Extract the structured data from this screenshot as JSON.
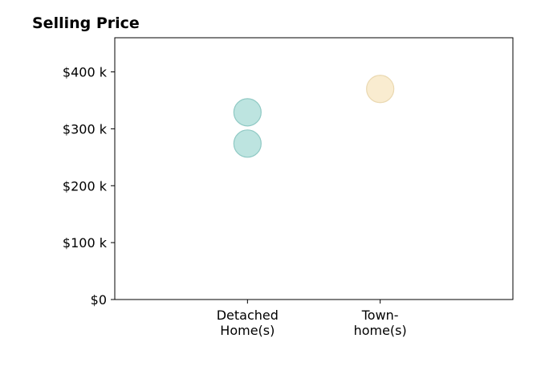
{
  "chart_data": {
    "type": "scatter",
    "title": "Selling Price",
    "xlabel": "",
    "ylabel": "",
    "categories": [
      [
        "Detached",
        "Home(s)"
      ],
      [
        "Town-",
        "home(s)"
      ]
    ],
    "ylim": [
      0,
      460000
    ],
    "xlim": [
      0,
      3
    ],
    "yticks": [
      {
        "value": 0,
        "label": "$0"
      },
      {
        "value": 100000,
        "label": "$100 k"
      },
      {
        "value": 200000,
        "label": "$200 k"
      },
      {
        "value": 300000,
        "label": "$300 k"
      },
      {
        "value": 400000,
        "label": "$400 k"
      }
    ],
    "grid": false,
    "legend": "none",
    "series": [
      {
        "category": 1,
        "color": "#b2dfdb",
        "edge_color": "#8fc9c4",
        "values": [
          329000,
          274000
        ]
      },
      {
        "category": 2,
        "color": "#f8e9c8",
        "edge_color": "#ead8b0",
        "values": [
          370000
        ]
      }
    ]
  }
}
